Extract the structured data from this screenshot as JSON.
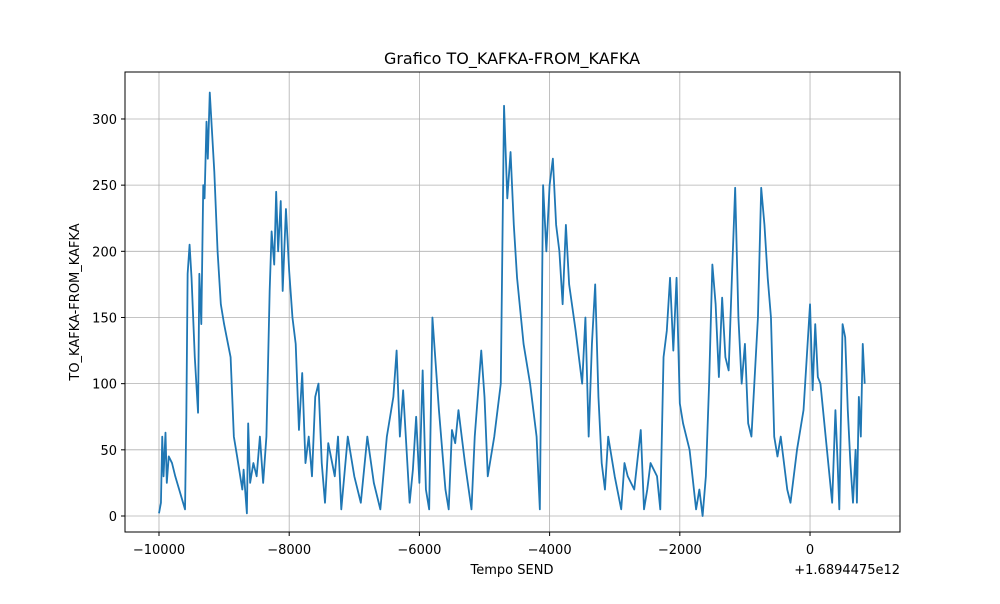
{
  "chart_data": {
    "type": "line",
    "title": "Grafico TO_KAFKA-FROM_KAFKA",
    "x_label": "Tempo SEND",
    "y_label": "TO_KAFKA-FROM_KAFKA",
    "x_offset_label": "+1.6894475e12",
    "xlim": [
      -10522,
      1382
    ],
    "ylim": [
      -12.1,
      335.5
    ],
    "xticks": [
      {
        "value": -10000,
        "label": "−10000"
      },
      {
        "value": -8000,
        "label": "−8000"
      },
      {
        "value": -6000,
        "label": "−6000"
      },
      {
        "value": -4000,
        "label": "−4000"
      },
      {
        "value": -2000,
        "label": "−2000"
      },
      0
    ],
    "yticks": [
      0,
      50,
      100,
      150,
      200,
      250,
      300
    ],
    "grid": true,
    "x": [
      -10000,
      -9970,
      -9950,
      -9930,
      -9900,
      -9880,
      -9850,
      -9800,
      -9750,
      -9600,
      -9580,
      -9560,
      -9530,
      -9500,
      -9450,
      -9400,
      -9380,
      -9350,
      -9320,
      -9300,
      -9270,
      -9250,
      -9220,
      -9150,
      -9100,
      -9050,
      -9000,
      -8900,
      -8850,
      -8800,
      -8720,
      -8700,
      -8650,
      -8630,
      -8600,
      -8550,
      -8500,
      -8450,
      -8400,
      -8350,
      -8300,
      -8270,
      -8230,
      -8200,
      -8170,
      -8130,
      -8100,
      -8050,
      -8000,
      -7950,
      -7900,
      -7850,
      -7800,
      -7750,
      -7700,
      -7650,
      -7600,
      -7550,
      -7500,
      -7450,
      -7400,
      -7300,
      -7250,
      -7200,
      -7100,
      -7000,
      -6900,
      -6800,
      -6700,
      -6600,
      -6500,
      -6400,
      -6350,
      -6300,
      -6250,
      -6150,
      -6100,
      -6050,
      -6000,
      -5950,
      -5900,
      -5850,
      -5800,
      -5700,
      -5600,
      -5550,
      -5500,
      -5450,
      -5400,
      -5300,
      -5200,
      -5150,
      -5050,
      -5000,
      -4950,
      -4850,
      -4750,
      -4700,
      -4650,
      -4600,
      -4550,
      -4500,
      -4400,
      -4300,
      -4200,
      -4150,
      -4100,
      -4050,
      -4000,
      -3950,
      -3900,
      -3850,
      -3800,
      -3750,
      -3700,
      -3600,
      -3500,
      -3450,
      -3400,
      -3350,
      -3300,
      -3250,
      -3200,
      -3150,
      -3100,
      -3000,
      -2900,
      -2850,
      -2800,
      -2700,
      -2600,
      -2550,
      -2500,
      -2450,
      -2350,
      -2300,
      -2250,
      -2200,
      -2150,
      -2100,
      -2050,
      -2000,
      -1950,
      -1850,
      -1750,
      -1700,
      -1650,
      -1600,
      -1550,
      -1500,
      -1450,
      -1400,
      -1350,
      -1300,
      -1250,
      -1200,
      -1150,
      -1100,
      -1050,
      -1000,
      -950,
      -900,
      -800,
      -750,
      -700,
      -650,
      -600,
      -550,
      -500,
      -450,
      -400,
      -350,
      -300,
      -200,
      -100,
      0,
      40,
      80,
      120,
      160,
      200,
      250,
      300,
      340,
      390,
      420,
      450,
      500,
      540,
      580,
      620,
      660,
      700,
      720,
      750,
      780,
      810,
      840
    ],
    "series": [
      {
        "name": "TO_KAFKA-FROM_KAFKA",
        "color": "#1f77b4",
        "values": [
          2,
          10,
          60,
          30,
          63,
          25,
          45,
          40,
          30,
          5,
          75,
          183,
          205,
          180,
          120,
          78,
          183,
          145,
          250,
          240,
          298,
          270,
          320,
          260,
          200,
          160,
          145,
          120,
          60,
          45,
          20,
          35,
          2,
          70,
          25,
          40,
          30,
          60,
          25,
          60,
          170,
          215,
          190,
          245,
          200,
          238,
          170,
          232,
          185,
          150,
          130,
          65,
          108,
          40,
          60,
          30,
          90,
          100,
          40,
          10,
          55,
          30,
          60,
          5,
          60,
          30,
          10,
          60,
          25,
          5,
          60,
          90,
          125,
          60,
          95,
          10,
          35,
          75,
          25,
          110,
          20,
          5,
          150,
          80,
          20,
          5,
          65,
          55,
          80,
          40,
          5,
          60,
          125,
          90,
          30,
          60,
          100,
          310,
          240,
          275,
          220,
          180,
          130,
          100,
          60,
          5,
          250,
          200,
          250,
          270,
          220,
          200,
          160,
          220,
          175,
          140,
          100,
          150,
          60,
          130,
          175,
          90,
          40,
          20,
          60,
          30,
          5,
          40,
          30,
          20,
          65,
          5,
          20,
          40,
          30,
          5,
          120,
          140,
          180,
          125,
          180,
          85,
          70,
          50,
          5,
          20,
          0,
          30,
          100,
          190,
          160,
          105,
          165,
          120,
          110,
          180,
          248,
          150,
          100,
          130,
          70,
          60,
          150,
          248,
          220,
          180,
          150,
          60,
          45,
          60,
          40,
          20,
          10,
          50,
          80,
          160,
          95,
          145,
          105,
          100,
          80,
          55,
          30,
          10,
          80,
          45,
          5,
          145,
          135,
          80,
          40,
          10,
          50,
          10,
          90,
          60,
          130,
          100
        ]
      }
    ]
  }
}
